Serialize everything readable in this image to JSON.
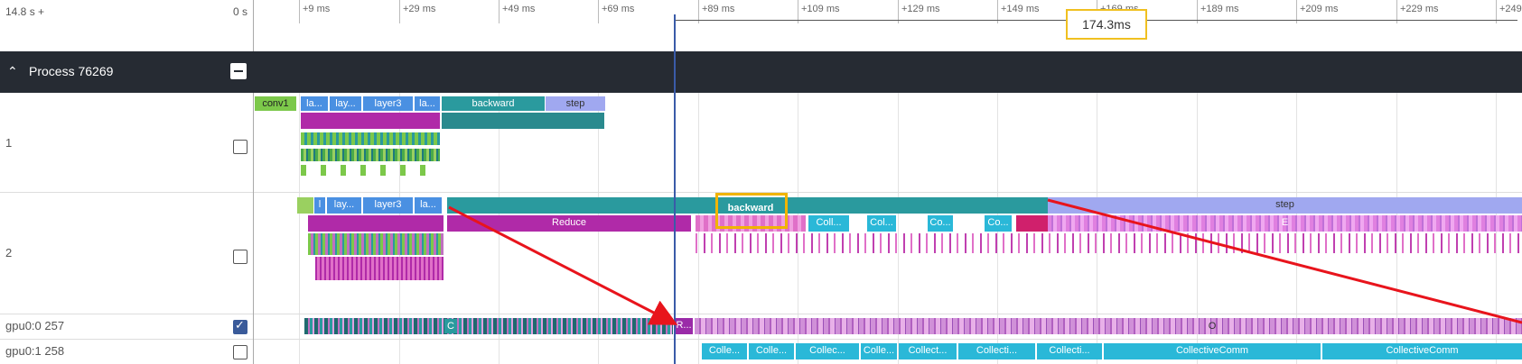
{
  "ruler": {
    "left_label": "14.8 s +",
    "right_label": "0 s",
    "ticks": [
      "+9 ms",
      "+29 ms",
      "+49 ms",
      "+69 ms",
      "+89 ms",
      "+109 ms",
      "+129 ms",
      "+149 ms",
      "+169 ms",
      "+189 ms",
      "+209 ms",
      "+229 ms",
      "+249"
    ]
  },
  "measure": {
    "label": "174.3ms"
  },
  "process": {
    "title": "Process 76269"
  },
  "tracks": {
    "t1": {
      "label": "1",
      "checked": false,
      "slices": [
        "conv1",
        "la...",
        "lay...",
        "layer3",
        "la...",
        "backward",
        "step"
      ]
    },
    "t2": {
      "label": "2",
      "checked": false,
      "slices": [
        "l",
        "lay...",
        "layer3",
        "la...",
        "backward",
        "step",
        "Reduce",
        "Coll...",
        "Col...",
        "Co...",
        "Co...",
        "E"
      ]
    },
    "gpu0": {
      "label": "gpu0:0 257",
      "checked": true,
      "slices": [
        "C",
        "R...",
        "O"
      ]
    },
    "gpu1": {
      "label": "gpu0:1 258",
      "checked": false,
      "slices": [
        "Colle...",
        "Colle...",
        "Collec...",
        "Colle...",
        "Collect...",
        "Collecti...",
        "Collecti...",
        "CollectiveComm",
        "CollectiveComm"
      ]
    }
  },
  "colors": {
    "header": "#262b33",
    "teal": "#2a9a9e",
    "blue": "#4a90e2",
    "magenta": "#b02aa8",
    "cyan": "#2ab8d8",
    "lavender": "#a0a8f0",
    "arrow": "#e8141c",
    "highlight": "#f0b400"
  }
}
